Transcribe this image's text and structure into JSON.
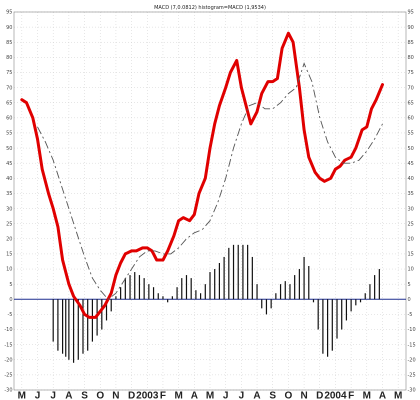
{
  "chart_data": {
    "type": "line",
    "title": "MACD (7,0.0812) histogram=MACD (1,9534)",
    "x_labels": [
      "M",
      "J",
      "J",
      "A",
      "S",
      "O",
      "N",
      "D",
      "2003",
      "F",
      "M",
      "A",
      "M",
      "J",
      "J",
      "A",
      "S",
      "O",
      "N",
      "D",
      "2004",
      "F",
      "M",
      "A",
      "M"
    ],
    "ylim": [
      -30,
      95
    ],
    "yticks": [
      -30,
      -25,
      -20,
      -15,
      -10,
      -5,
      0,
      5,
      10,
      15,
      20,
      25,
      30,
      35,
      40,
      45,
      50,
      55,
      60,
      65,
      70,
      75,
      80,
      85,
      90,
      95
    ],
    "grid": true,
    "colors": {
      "macd": "#e00000",
      "signal": "#555555",
      "histogram": "#111111",
      "zero_line": "#1f2f8f"
    },
    "series": [
      {
        "name": "",
        "style": "line-red",
        "x": [
          0,
          0.3,
          0.7,
          1,
          1.3,
          1.7,
          2,
          2.3,
          2.6,
          3,
          3.3,
          3.7,
          4,
          4.3,
          4.7,
          5,
          5.3,
          5.7,
          6,
          6.3,
          6.6,
          7,
          7.3,
          7.7,
          8,
          8.3,
          8.6,
          9,
          9.3,
          9.7,
          10,
          10.3,
          10.7,
          11,
          11.3,
          11.7,
          12,
          12.3,
          12.6,
          13,
          13.3,
          13.7,
          14,
          14.3,
          14.6,
          15,
          15.3,
          15.7,
          16,
          16.3,
          16.6,
          17,
          17.3,
          17.7,
          18,
          18.3,
          18.7,
          19,
          19.3,
          19.7,
          20,
          20.3,
          20.6,
          21,
          21.3,
          21.7,
          22,
          22.3,
          22.6,
          23
        ],
        "values": [
          66,
          65,
          60,
          53,
          43,
          35,
          30,
          24,
          13,
          5,
          1,
          -2,
          -5,
          -6,
          -6,
          -4,
          -2,
          2,
          8,
          12,
          15,
          16,
          16,
          17,
          17,
          16,
          13,
          13,
          16,
          21,
          26,
          27,
          26,
          28,
          35,
          40,
          50,
          58,
          64,
          70,
          75,
          79,
          70,
          64,
          58,
          62,
          68,
          72,
          72,
          73,
          83,
          88,
          85,
          70,
          56,
          47,
          42,
          40,
          39,
          40,
          43,
          44,
          46,
          47,
          50,
          56,
          57,
          63,
          66,
          71
        ]
      },
      {
        "name": "",
        "style": "line-dashed",
        "x": [
          1,
          1.5,
          2,
          2.5,
          3,
          3.5,
          4,
          4.5,
          5,
          5.5,
          6,
          6.5,
          7,
          7.5,
          8,
          8.5,
          9,
          9.5,
          10,
          10.5,
          11,
          11.5,
          12,
          12.5,
          13,
          13.5,
          14,
          14.5,
          15,
          15.5,
          16,
          16.5,
          17,
          17.5,
          18,
          18.5,
          19,
          19.5,
          20,
          20.5,
          21,
          21.5,
          22,
          22.5,
          23
        ],
        "values": [
          57,
          52,
          46,
          38,
          30,
          22,
          14,
          7,
          3,
          0,
          2,
          6,
          10,
          14,
          16,
          16,
          15,
          15,
          17,
          20,
          22,
          23,
          26,
          32,
          40,
          50,
          58,
          64,
          65,
          63,
          63,
          65,
          68,
          70,
          78,
          72,
          60,
          52,
          47,
          45,
          45,
          46,
          49,
          53,
          58
        ]
      },
      {
        "name": "",
        "style": "histogram",
        "x": [
          2,
          2.3,
          2.6,
          2.8,
          3,
          3.3,
          3.6,
          3.9,
          4.2,
          4.5,
          4.8,
          5.1,
          5.4,
          5.7,
          6,
          6.3,
          6.6,
          6.9,
          7.2,
          7.5,
          7.8,
          8.1,
          8.4,
          8.7,
          9,
          9.3,
          9.6,
          9.9,
          10.2,
          10.5,
          10.8,
          11.1,
          11.4,
          11.7,
          12,
          12.3,
          12.6,
          12.9,
          13.2,
          13.5,
          13.8,
          14.1,
          14.4,
          14.7,
          15,
          15.3,
          15.6,
          15.9,
          16.2,
          16.5,
          16.8,
          17.1,
          17.4,
          17.7,
          18,
          18.3,
          18.6,
          18.9,
          19.2,
          19.5,
          19.8,
          20.1,
          20.4,
          20.7,
          21,
          21.3,
          21.6,
          21.9,
          22.2,
          22.5,
          22.8
        ],
        "values": [
          -14,
          -17,
          -18,
          -19,
          -20,
          -21,
          -20,
          -18,
          -17,
          -14,
          -12,
          -10,
          -7,
          -4,
          1,
          4,
          7,
          8,
          9,
          8,
          7,
          5,
          4,
          2,
          1,
          -1,
          1,
          4,
          7,
          8,
          7,
          3,
          2,
          5,
          9,
          10,
          12,
          14,
          17,
          18,
          18,
          18,
          18,
          14,
          5,
          -3,
          -5,
          -3,
          2,
          5,
          6,
          5,
          8,
          10,
          14,
          11,
          -1,
          -10,
          -18,
          -19,
          -17,
          -13,
          -10,
          -7,
          -4,
          -2,
          -1,
          2,
          5,
          8,
          10
        ]
      }
    ]
  }
}
